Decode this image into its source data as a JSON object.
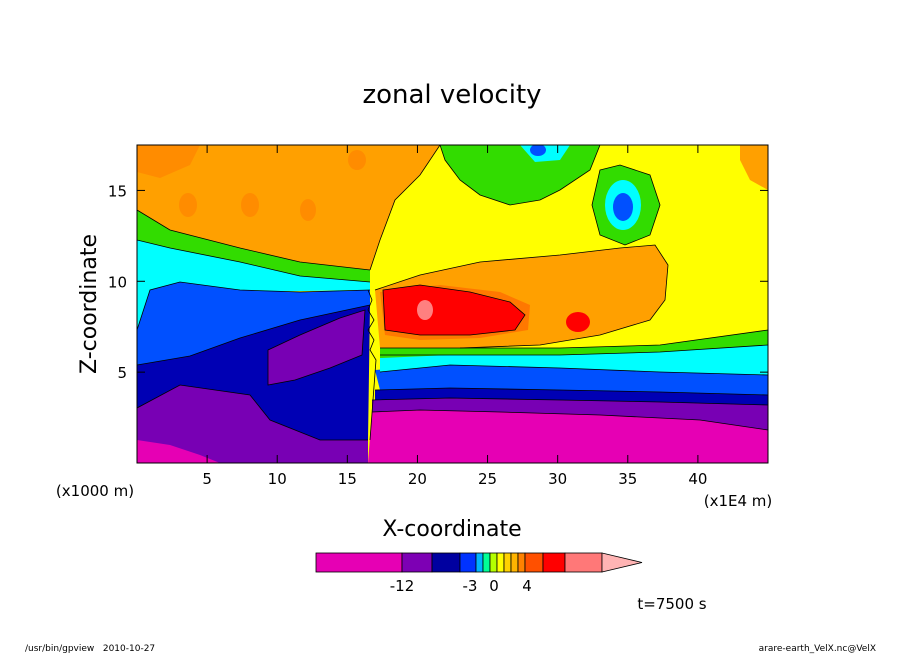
{
  "chart_data": {
    "type": "heatmap",
    "title": "zonal velocity",
    "xlabel": "X-coordinate",
    "ylabel": "Z-coordinate",
    "x_scale_note": "(x1E4 m)",
    "y_scale_note": "(x1000 m)",
    "xlim": [
      0,
      45
    ],
    "ylim": [
      0,
      17.5
    ],
    "x_ticks": [
      5,
      10,
      15,
      20,
      25,
      30,
      35,
      40
    ],
    "y_ticks": [
      5,
      10,
      15
    ],
    "x_tick_labels": [
      "5",
      "10",
      "15",
      "20",
      "25",
      "30",
      "35",
      "40"
    ],
    "y_tick_labels": [
      "5",
      "10",
      "15"
    ],
    "colorbar": {
      "tick_labels": [
        "-12",
        "-3",
        "0",
        "4"
      ],
      "colors": [
        "#e600b4",
        "#7d00b4",
        "#0000a0",
        "#0032ff",
        "#00b4ff",
        "#00ff96",
        "#b4ff00",
        "#ffff00",
        "#ffd200",
        "#ffb400",
        "#ff8200",
        "#ff5000",
        "#ff0000",
        "#ff7878",
        "#ffb4b4"
      ]
    },
    "time_label": "t=7500 s"
  },
  "footer": {
    "left": "/usr/bin/gpview   2010-10-27",
    "right": "arare-earth_VelX.nc@VelX"
  }
}
